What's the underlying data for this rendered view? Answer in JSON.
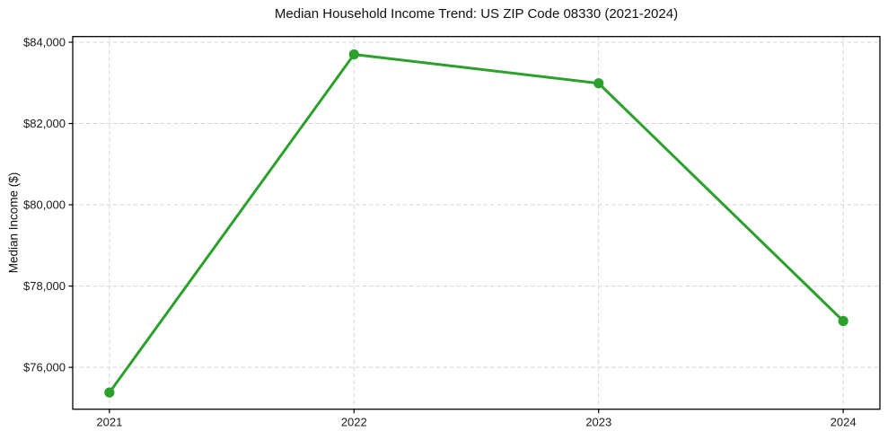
{
  "chart_data": {
    "type": "line",
    "title": "Median Household Income Trend: US ZIP Code 08330 (2021-2024)",
    "xlabel": "",
    "ylabel": "Median Income ($)",
    "categories": [
      "2021",
      "2022",
      "2023",
      "2024"
    ],
    "values": [
      75380,
      83700,
      82990,
      77140
    ],
    "ylim": [
      74970,
      84140
    ],
    "yticks": [
      {
        "value": 76000,
        "label": "$76,000"
      },
      {
        "value": 78000,
        "label": "$78,000"
      },
      {
        "value": 80000,
        "label": "$80,000"
      },
      {
        "value": 82000,
        "label": "$82,000"
      },
      {
        "value": 84000,
        "label": "$84,000"
      }
    ],
    "grid": true,
    "legend": "none",
    "line_color": "#2ca02c",
    "marker": "circle",
    "grid_color": "#d4d4d4",
    "spine_color": "#000000",
    "text_color": "#1a1a1a"
  }
}
